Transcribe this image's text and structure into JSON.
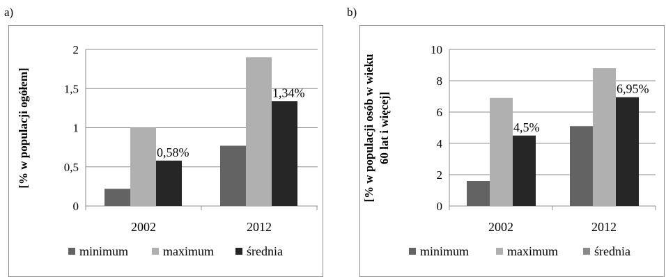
{
  "panels": [
    {
      "id": "a",
      "label": "a)"
    },
    {
      "id": "b",
      "label": "b)"
    }
  ],
  "chart_data": [
    {
      "type": "bar",
      "categories": [
        "2002",
        "2012"
      ],
      "ylabel": "[% w populacji ogółem]",
      "ylabel_lines": [
        "[% w populacji ogółem]"
      ],
      "ylim": [
        0,
        2
      ],
      "yticks": [
        "0",
        "0,5",
        "1",
        "1,5",
        "2"
      ],
      "ytick_values": [
        0,
        0.5,
        1,
        1.5,
        2
      ],
      "grid": true,
      "legend": "bottom",
      "series": [
        {
          "name": "minimum",
          "values": [
            0.22,
            0.77
          ],
          "color": "#636363"
        },
        {
          "name": "maximum",
          "values": [
            1.0,
            1.9
          ],
          "color": "#b0b0b0"
        },
        {
          "name": "średnia",
          "values": [
            0.58,
            1.34
          ],
          "color": "#262626"
        }
      ],
      "data_labels": {
        "series": "średnia",
        "labels": [
          "0,58%",
          "1,34%"
        ]
      }
    },
    {
      "type": "bar",
      "categories": [
        "2002",
        "2012"
      ],
      "ylabel": "[% w populacji osób w wieku 60 lat i więcej]",
      "ylabel_lines": [
        "[% w populacji osób w wieku",
        "60 lat i więcej]"
      ],
      "ylim": [
        0,
        10
      ],
      "yticks": [
        "0",
        "2",
        "4",
        "6",
        "8",
        "10"
      ],
      "ytick_values": [
        0,
        2,
        4,
        6,
        8,
        10
      ],
      "grid": true,
      "legend": "bottom",
      "series": [
        {
          "name": "minimum",
          "values": [
            1.6,
            5.1
          ],
          "color": "#636363"
        },
        {
          "name": "maximum",
          "values": [
            6.9,
            8.8
          ],
          "color": "#b0b0b0"
        },
        {
          "name": "średnia",
          "values": [
            4.5,
            6.95
          ],
          "color": "#262626"
        }
      ],
      "legend_colors": [
        "#636363",
        "#b0b0b0",
        "#8a8a8a"
      ],
      "data_labels": {
        "series": "średnia",
        "labels": [
          "4,5%",
          "6,95%"
        ]
      }
    }
  ]
}
